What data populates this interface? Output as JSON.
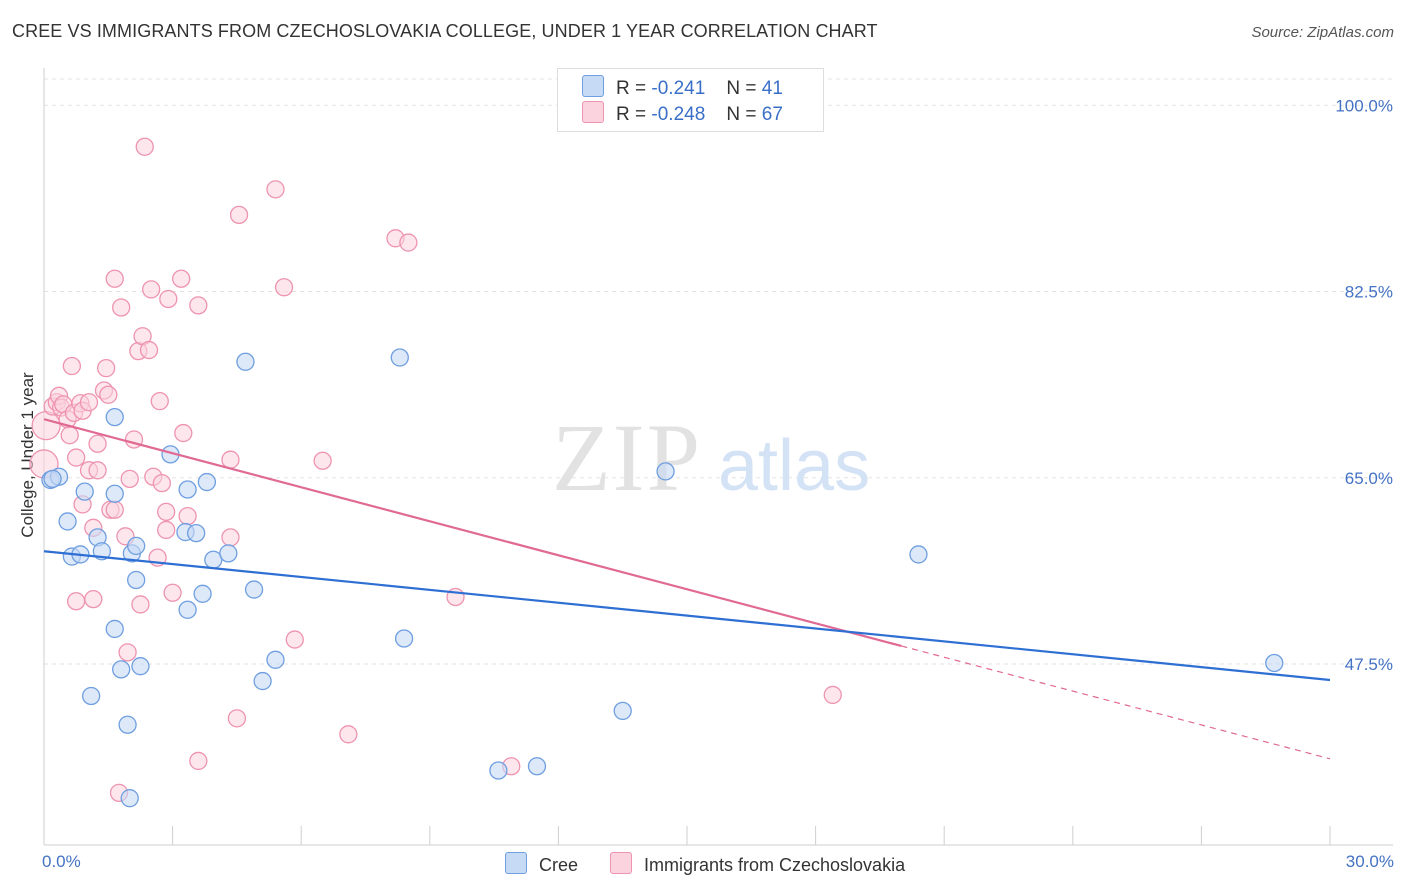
{
  "header": {
    "title": "CREE VS IMMIGRANTS FROM CZECHOSLOVAKIA COLLEGE, UNDER 1 YEAR CORRELATION CHART",
    "source": "Source: ZipAtlas.com"
  },
  "legend": {
    "r_label": "R =",
    "n_label": "N =",
    "cree": {
      "r": "-0.241",
      "n": "41"
    },
    "czech": {
      "r": "-0.248",
      "n": "67"
    }
  },
  "watermark": {
    "zip": "ZIP",
    "atlas": "atlas"
  },
  "colors": {
    "cree_fill": "#c6d9f5",
    "cree_stroke": "#6f9fe0",
    "cree_line": "#2e6fd4",
    "czech_fill": "#fbd3df",
    "czech_stroke": "#ee93b0",
    "czech_line": "#e06a93",
    "tick_text": "#4472C4"
  },
  "chart_data": {
    "type": "scatter",
    "title": "CREE VS IMMIGRANTS FROM CZECHOSLOVAKIA COLLEGE, UNDER 1 YEAR CORRELATION CHART",
    "xlabel": "",
    "ylabel": "College, Under 1 year",
    "xlim": [
      0,
      30
    ],
    "ylim": [
      30.5,
      103.5
    ],
    "x_tick_labels": [
      "0.0%",
      "30.0%"
    ],
    "y_ticks": [
      47.5,
      65.0,
      82.5,
      100.0
    ],
    "y_tick_labels": [
      "47.5%",
      "65.0%",
      "82.5%",
      "100.0%"
    ],
    "grid": true,
    "series": [
      {
        "name": "Cree",
        "points": [
          [
            0.15,
            64.8
          ],
          [
            0.35,
            65.1
          ],
          [
            0.55,
            60.9
          ],
          [
            0.65,
            57.6
          ],
          [
            0.85,
            57.8
          ],
          [
            0.95,
            63.7
          ],
          [
            1.1,
            44.5
          ],
          [
            1.25,
            59.4
          ],
          [
            1.35,
            58.1
          ],
          [
            1.65,
            63.5
          ],
          [
            1.65,
            50.8
          ],
          [
            1.65,
            70.7
          ],
          [
            1.8,
            47.0
          ],
          [
            1.95,
            41.8
          ],
          [
            2.0,
            34.9
          ],
          [
            2.05,
            57.9
          ],
          [
            2.15,
            55.4
          ],
          [
            2.15,
            58.6
          ],
          [
            2.25,
            47.3
          ],
          [
            2.95,
            67.2
          ],
          [
            3.3,
            59.9
          ],
          [
            3.35,
            63.9
          ],
          [
            3.35,
            52.6
          ],
          [
            3.55,
            59.8
          ],
          [
            3.7,
            54.1
          ],
          [
            3.8,
            64.6
          ],
          [
            3.95,
            57.3
          ],
          [
            4.3,
            57.9
          ],
          [
            4.7,
            75.9
          ],
          [
            4.9,
            54.5
          ],
          [
            5.1,
            45.9
          ],
          [
            5.4,
            47.9
          ],
          [
            8.3,
            76.3
          ],
          [
            8.4,
            49.9
          ],
          [
            10.6,
            37.5
          ],
          [
            11.5,
            37.9
          ],
          [
            13.5,
            43.1
          ],
          [
            14.5,
            65.6
          ],
          [
            20.4,
            57.8
          ],
          [
            28.7,
            47.6
          ],
          [
            0.2,
            64.9
          ]
        ],
        "trend": {
          "x0": 0,
          "y0": 58.1,
          "x1": 30,
          "y1": 46.0
        }
      },
      {
        "name": "Immigrants from Czechoslovakia",
        "points": [
          [
            0.0,
            66.3
          ],
          [
            0.05,
            69.9
          ],
          [
            0.2,
            71.7
          ],
          [
            0.3,
            72.1
          ],
          [
            0.35,
            72.7
          ],
          [
            0.4,
            71.6
          ],
          [
            0.45,
            71.9
          ],
          [
            0.55,
            70.5
          ],
          [
            0.6,
            69.0
          ],
          [
            0.65,
            75.5
          ],
          [
            0.7,
            71.1
          ],
          [
            0.75,
            66.9
          ],
          [
            0.75,
            53.4
          ],
          [
            0.85,
            72.0
          ],
          [
            0.9,
            71.3
          ],
          [
            1.05,
            72.1
          ],
          [
            1.05,
            65.7
          ],
          [
            1.15,
            60.3
          ],
          [
            1.15,
            53.6
          ],
          [
            1.25,
            65.7
          ],
          [
            1.25,
            68.2
          ],
          [
            1.4,
            73.2
          ],
          [
            1.45,
            75.3
          ],
          [
            1.5,
            72.8
          ],
          [
            1.55,
            62.0
          ],
          [
            1.65,
            62.0
          ],
          [
            1.65,
            83.7
          ],
          [
            1.8,
            81.0
          ],
          [
            1.9,
            59.5
          ],
          [
            1.95,
            48.6
          ],
          [
            2.0,
            64.9
          ],
          [
            2.1,
            68.6
          ],
          [
            2.2,
            76.9
          ],
          [
            2.3,
            78.3
          ],
          [
            2.35,
            96.1
          ],
          [
            2.45,
            77.0
          ],
          [
            2.5,
            82.7
          ],
          [
            2.55,
            65.1
          ],
          [
            2.65,
            57.5
          ],
          [
            2.7,
            72.2
          ],
          [
            2.75,
            64.5
          ],
          [
            2.85,
            61.8
          ],
          [
            2.85,
            60.1
          ],
          [
            2.9,
            81.8
          ],
          [
            3.2,
            83.7
          ],
          [
            3.25,
            69.2
          ],
          [
            3.35,
            61.4
          ],
          [
            3.6,
            81.2
          ],
          [
            3.6,
            38.4
          ],
          [
            4.35,
            59.4
          ],
          [
            4.35,
            66.7
          ],
          [
            4.5,
            42.4
          ],
          [
            4.55,
            89.7
          ],
          [
            5.4,
            92.1
          ],
          [
            5.6,
            82.9
          ],
          [
            5.85,
            49.8
          ],
          [
            6.5,
            66.6
          ],
          [
            7.1,
            40.9
          ],
          [
            8.2,
            87.5
          ],
          [
            8.5,
            87.1
          ],
          [
            9.6,
            53.8
          ],
          [
            10.9,
            37.9
          ],
          [
            18.4,
            44.6
          ],
          [
            2.25,
            53.1
          ],
          [
            1.75,
            35.4
          ],
          [
            0.9,
            62.5
          ],
          [
            3.0,
            54.2
          ]
        ],
        "trend": {
          "x0": 0,
          "y0": 70.5,
          "x1": 20.0,
          "y1": 49.2
        },
        "trend_dashed": {
          "x0": 20.0,
          "y0": 49.2,
          "x1": 30,
          "y1": 38.6
        }
      }
    ]
  },
  "bottom_legend": {
    "cree": "Cree",
    "czech": "Immigrants from Czechoslovakia"
  }
}
